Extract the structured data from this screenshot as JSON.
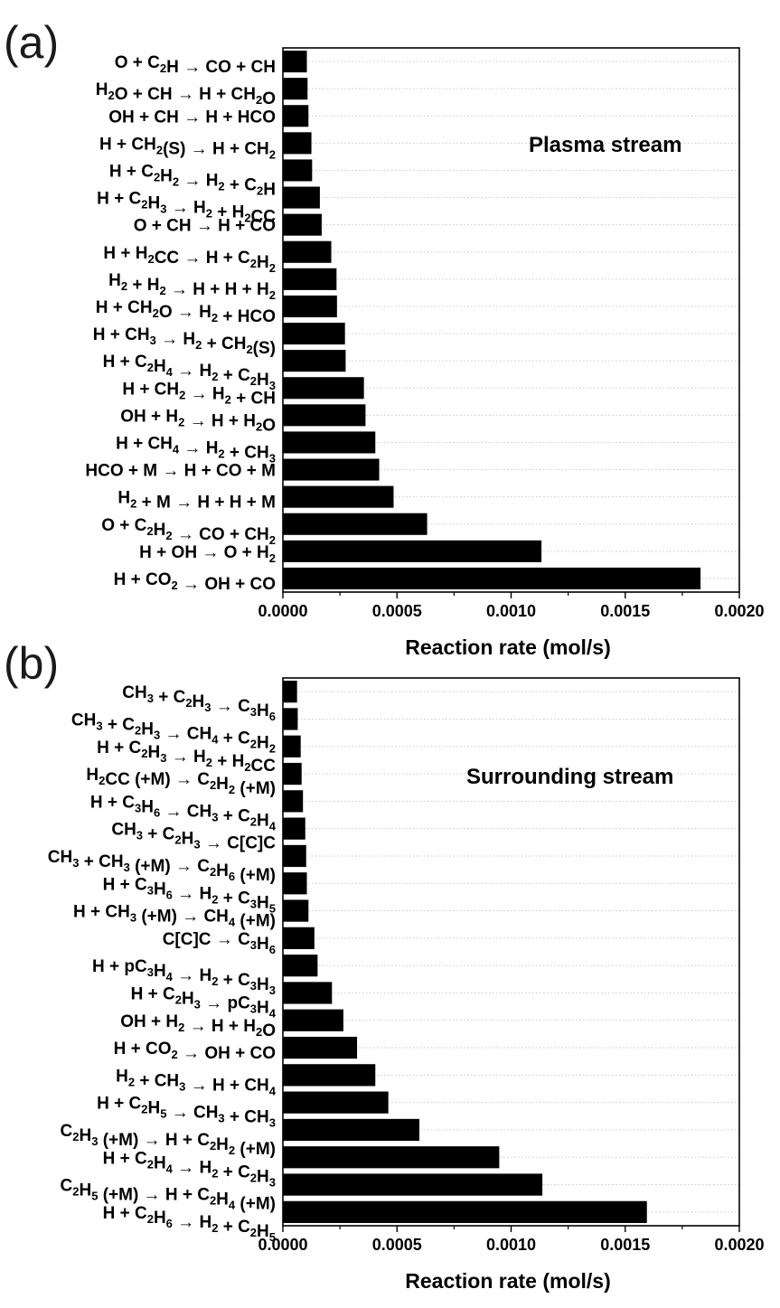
{
  "chart_data": [
    {
      "type": "bar",
      "orientation": "horizontal",
      "panel_label": "(a)",
      "annotation": "Plasma stream",
      "xlabel": "Reaction rate (mol/s)",
      "xlim": [
        0,
        0.002
      ],
      "xticks": [
        "0.0000",
        "0.0005",
        "0.0010",
        "0.0015",
        "0.0020"
      ],
      "grid": "horizontal dotted",
      "categories": [
        "O + C_2H → CO + CH",
        "H_2O + CH → H + CH_2O",
        "OH + CH → H + HCO",
        "H + CH_2(S) → H + CH_2",
        "H + C_2H_2 → H_2 + C_2H",
        "H + C_2H_3 → H_2 + H_2CC",
        "O + CH → H + CO",
        "H + H_2CC → H + C_2H_2",
        "H_2 + H_2 → H + H + H_2",
        "H + CH_2O → H_2 + HCO",
        "H + CH_3 → H_2 + CH_2(S)",
        "H + C_2H_4 → H_2 + C_2H_3",
        "H + CH_2 → H_2 + CH",
        "OH + H_2 → H + H_2O",
        "H + CH_4 → H_2 + CH_3",
        "HCO + M → H + CO + M",
        "H_2 + M → H + H + M",
        "O + C_2H_2 → CO + CH_2",
        "H + OH → O + H_2",
        "H + CO_2 → OH + CO"
      ],
      "values": [
        0.000105,
        0.000108,
        0.000112,
        0.000125,
        0.000128,
        0.000162,
        0.00017,
        0.000212,
        0.000235,
        0.000237,
        0.000272,
        0.000275,
        0.000355,
        0.000362,
        0.000405,
        0.000422,
        0.000485,
        0.000632,
        0.001133,
        0.00183
      ],
      "color": "#000000"
    },
    {
      "type": "bar",
      "orientation": "horizontal",
      "panel_label": "(b)",
      "annotation": "Surrounding stream",
      "xlabel": "Reaction rate (mol/s)",
      "xlim": [
        0,
        0.002
      ],
      "xticks": [
        "0.0000",
        "0.0005",
        "0.0010",
        "0.0015",
        "0.0020"
      ],
      "grid": "horizontal dotted",
      "categories": [
        "CH_3 + C_2H_3 → C_3H_6",
        "CH_3 + C_2H_3 → CH_4 + C_2H_2",
        "H + C_2H_3 → H_2 + H_2CC",
        "H_2CC (+M) → C_2H_2 (+M)",
        "H + C_3H_6 → CH_3 + C_2H_4",
        "CH_3 + C_2H_3 → C[C]C",
        "CH_3 + CH_3 (+M) → C_2H_6 (+M)",
        "H + C_3H_6 → H_2 + C_3H_5",
        "H + CH_3 (+M) → CH_4 (+M)",
        "C[C]C → C_3H_6",
        "H + pC_3H_4 → H_2 + C_3H_3",
        "H + C_2H_3 → pC_3H_4",
        "OH + H_2 → H + H_2O",
        "H + CO_2 → OH + CO",
        "H_2 + CH_3 → H + CH_4",
        "H + C_2H_5 → CH_3 + CH_3",
        "C_2H_3 (+M) → H + C_2H_2 (+M)",
        "H + C_2H_4 → H_2 + C_2H_3",
        "C_2H_5 (+M) → H + C_2H_4 (+M)",
        "H + C_2H_6 → H_2 + C_2H_5"
      ],
      "values": [
        6.2e-05,
        6.5e-05,
        7.8e-05,
        8.2e-05,
        8.8e-05,
        9.8e-05,
        0.000102,
        0.000105,
        0.000112,
        0.000138,
        0.000152,
        0.000215,
        0.000265,
        0.000325,
        0.000405,
        0.000462,
        0.000598,
        0.000948,
        0.001137,
        0.001595
      ],
      "color": "#000000"
    }
  ]
}
